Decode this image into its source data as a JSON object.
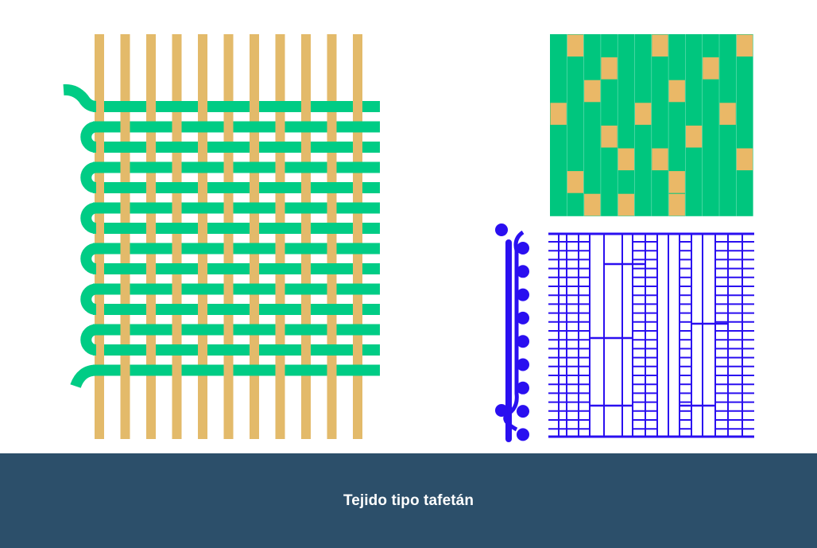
{
  "caption": "Tejido tipo tafetán",
  "colors": {
    "warp": "#e3ba6a",
    "weft": "#00cc85",
    "grid_weft": "#00c67e",
    "grid_warp_cell": "#eab867",
    "draft": "#2a0ff0",
    "footer": "#2c4f6a",
    "footer_text": "#ffffff",
    "background": "#ffffff"
  },
  "weave": {
    "warp_threads": 11,
    "weft_threads": 14
  },
  "point_grid": {
    "columns": 12,
    "rows": 8,
    "warp_up_cells": [
      [
        1,
        0
      ],
      [
        6,
        0
      ],
      [
        11,
        0
      ],
      [
        3,
        1
      ],
      [
        9,
        1
      ],
      [
        2,
        2
      ],
      [
        7,
        2
      ],
      [
        0,
        3
      ],
      [
        5,
        3
      ],
      [
        10,
        3
      ],
      [
        3,
        4
      ],
      [
        8,
        4
      ],
      [
        4,
        5
      ],
      [
        6,
        5
      ],
      [
        11,
        5
      ],
      [
        1,
        6
      ],
      [
        7,
        6
      ],
      [
        2,
        7
      ],
      [
        4,
        7
      ],
      [
        7,
        7
      ]
    ]
  },
  "draft": {
    "selvedge_loops": 9
  }
}
